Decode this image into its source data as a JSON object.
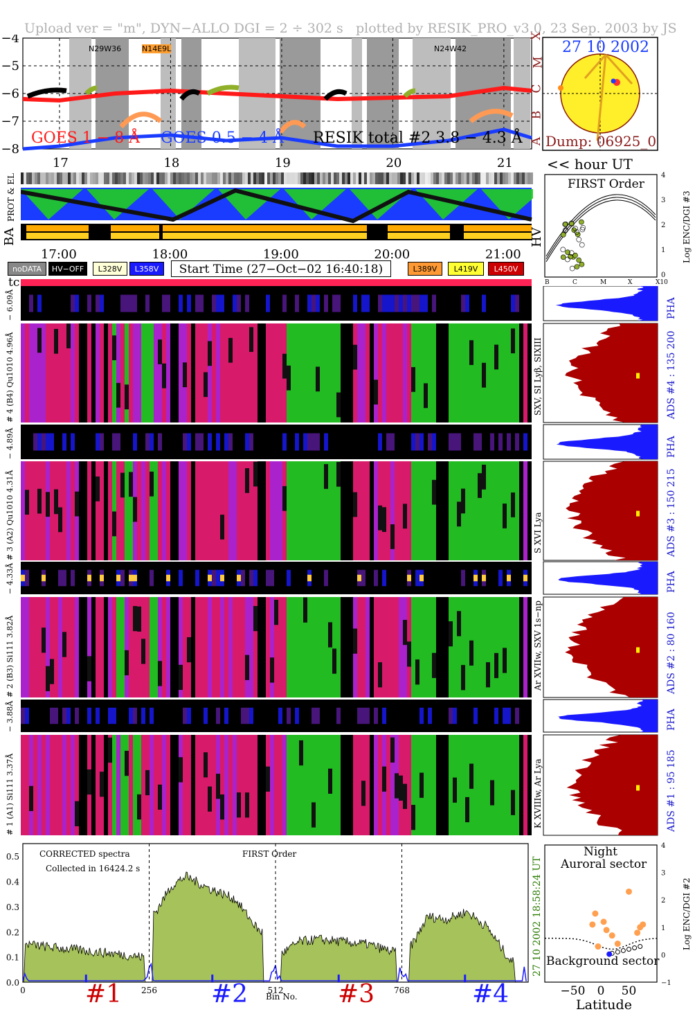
{
  "header": {
    "left": "Upload ver = \"m\", DYN−ALLO DGI =   2 ÷ 302 s",
    "right": "plotted by RESIK_PRO_v3.0, 23 Sep. 2003 by JS"
  },
  "goes_panel": {
    "y_ticks": [
      "−4",
      "−5",
      "−6",
      "−7",
      "−8"
    ],
    "classes": [
      "X",
      "M",
      "C",
      "B",
      "A"
    ],
    "hour_ticks": [
      "17",
      "18",
      "19",
      "20",
      "21"
    ],
    "labels": {
      "goes1": "GOES 1 − 8 Å",
      "goes05": "GOES 0.5 − 4 Å",
      "resik": "RESIK total #2  3.8 − 4.3 Å"
    },
    "regions": [
      "N29W36",
      "N14E9L",
      "N24W42"
    ],
    "colors": {
      "goes1": "#ff1a1a",
      "goes05": "#1a3cff",
      "resik": "#000000"
    }
  },
  "sun": {
    "date": "27 10 2002",
    "dump": "Dump: 06925_0"
  },
  "hour_ut_label": "<< hour UT",
  "strip_labels": {
    "prot_el": "PROT & EL",
    "ba": "BA",
    "hv": "HV"
  },
  "time_ticks": [
    "17:00",
    "18:00",
    "19:00",
    "20:00",
    "21:00"
  ],
  "legend": {
    "nodata": "noDATA",
    "hvoff": "HV−OFF",
    "v328": "L328V",
    "v358": "L358V",
    "start": "Start Time (27−Oct−02 16:40:18)",
    "v389": "L389V",
    "v419": "L419V",
    "v450": "L450V"
  },
  "tc_label": "tc",
  "first_order": {
    "title": "FIRST Order",
    "ylabel": "Log ENC/DGI #3",
    "yticks": [
      "0",
      "1",
      "2",
      "3",
      "4"
    ],
    "xticks": [
      "B",
      "C",
      "M",
      "X",
      "X10"
    ]
  },
  "channels": [
    {
      "pha_label": "− 6.09Å",
      "main_label": "# 4 (B4) Qu1010 4.96Å",
      "line_label": "SXV, SI Lyβ, SIXIII",
      "ads": "ADS #4 :   135 200"
    },
    {
      "pha_label": "− 4.89Å",
      "main_label": "# 3 (A2) Qu1010 4.31Å",
      "line_label": "S XVI Lya",
      "ads": "ADS #3 :   150 215"
    },
    {
      "pha_label": "− 4.33Å",
      "main_label": "# 2 (B3) Si111 3.82Å",
      "line_label": "Ar XVIIw, SXV 1s−np",
      "ads": "ADS #2 :   80 160"
    },
    {
      "pha_label": "− 3.88Å",
      "main_label": "# 1 (A1) Si111 3.37Å",
      "line_label": "K XVIIIw, Ar Lya",
      "ads": "ADS #1 :   95 185"
    }
  ],
  "pha_text": "PHA",
  "spectrum": {
    "text1": "CORRECTED spectra",
    "text2": "Collected in 16424.2 s",
    "text3": "FIRST Order",
    "side_time": "18:58:24 UT",
    "side_date": "27 10 2002",
    "yticks": [
      "0.0",
      "0.1",
      "0.2",
      "0.3",
      "0.4",
      "0.5"
    ],
    "xticks": [
      "0",
      "256",
      "512",
      "768"
    ],
    "xlabel": "Bin No.",
    "channel_labels": [
      "#1",
      "#2",
      "#3",
      "#4"
    ]
  },
  "lat_panel": {
    "title1": "Night",
    "title2": "Auroral sector",
    "bottom": "Background sector",
    "xlabel": "Latitude",
    "xticks": [
      "−50",
      "0",
      "50"
    ],
    "yticks": [
      "−1",
      "0",
      "1",
      "2",
      "3",
      "4"
    ],
    "ylabel": "Log ENC/DGI #2"
  },
  "chart_data": [
    {
      "type": "line",
      "xlabel": "hour UT",
      "x_range": [
        16.67,
        21.25
      ],
      "ylim": [
        -8,
        -4
      ],
      "series": [
        {
          "name": "GOES 1 − 8 Å",
          "x": [
            16.67,
            17.0,
            17.5,
            18.0,
            18.5,
            19.0,
            19.5,
            20.0,
            20.5,
            21.0,
            21.25
          ],
          "y": [
            -6.2,
            -6.25,
            -6.0,
            -5.9,
            -6.0,
            -6.1,
            -6.2,
            -6.15,
            -6.1,
            -5.8,
            -5.9
          ]
        },
        {
          "name": "GOES 0.5 − 4 Å",
          "x": [
            16.67,
            17.0,
            17.5,
            18.0,
            18.5,
            19.0,
            19.5,
            20.0,
            20.5,
            21.0,
            21.25
          ],
          "y": [
            -8.0,
            -7.9,
            -7.6,
            -7.5,
            -7.7,
            -7.6,
            -7.9,
            -7.9,
            -7.7,
            -7.3,
            -7.6
          ]
        }
      ]
    },
    {
      "type": "area",
      "xlabel": "Bin No.",
      "x_range": [
        0,
        1023
      ],
      "ylim": [
        0,
        0.55
      ],
      "series": [
        {
          "name": "#1",
          "x": [
            10,
            50,
            100,
            150,
            200,
            240
          ],
          "y": [
            0.15,
            0.14,
            0.13,
            0.12,
            0.11,
            0.1
          ]
        },
        {
          "name": "#2",
          "x": [
            270,
            300,
            330,
            380,
            430,
            480
          ],
          "y": [
            0.28,
            0.38,
            0.42,
            0.37,
            0.33,
            0.2
          ]
        },
        {
          "name": "#3",
          "x": [
            530,
            560,
            600,
            650,
            700,
            750
          ],
          "y": [
            0.12,
            0.16,
            0.17,
            0.16,
            0.15,
            0.12
          ]
        },
        {
          "name": "#4",
          "x": [
            790,
            820,
            860,
            900,
            940,
            990
          ],
          "y": [
            0.15,
            0.26,
            0.25,
            0.28,
            0.22,
            0.08
          ]
        }
      ]
    },
    {
      "type": "scatter",
      "xlabel": "Latitude",
      "ylabel": "Log ENC/DGI #2",
      "xlim": [
        -100,
        100
      ],
      "ylim": [
        -1,
        4
      ],
      "series": [
        {
          "name": "Auroral sector",
          "x": [
            -15,
            -10,
            5,
            10,
            20,
            30,
            50,
            65,
            70,
            75,
            -5
          ],
          "y": [
            1.1,
            1.5,
            1.2,
            0.9,
            0.7,
            0.4,
            2.3,
            0.8,
            1.0,
            1.1,
            0.3
          ]
        },
        {
          "name": "Background sector",
          "x": [
            20,
            30,
            40,
            50,
            60,
            70
          ],
          "y": [
            0.05,
            0.1,
            0.15,
            0.2,
            0.25,
            0.3
          ]
        }
      ]
    }
  ]
}
